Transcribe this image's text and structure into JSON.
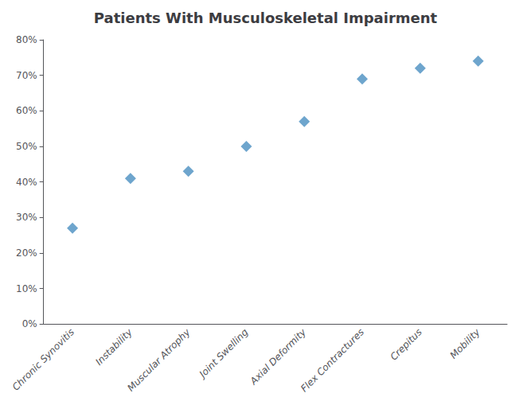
{
  "chart_data": {
    "type": "scatter",
    "title": "Patients With Musculoskeletal Impairment",
    "categories": [
      "Chronic Synovitis",
      "Instability",
      "Muscular Atrophy",
      "Joint Swelling",
      "Axial Deformity",
      "Flex Contractures",
      "Crepitus",
      "Mobility"
    ],
    "values": [
      0.27,
      0.41,
      0.43,
      0.5,
      0.57,
      0.69,
      0.72,
      0.74
    ],
    "color": "#4a8fc0",
    "marker": "diamond",
    "ylim": [
      0,
      0.8
    ],
    "yticks": [
      {
        "value": 0.0,
        "label": "0%"
      },
      {
        "value": 0.1,
        "label": "10%"
      },
      {
        "value": 0.2,
        "label": "20%"
      },
      {
        "value": 0.3,
        "label": "30%"
      },
      {
        "value": 0.4,
        "label": "40%"
      },
      {
        "value": 0.5,
        "label": "50%"
      },
      {
        "value": 0.6,
        "label": "60%"
      },
      {
        "value": 0.7,
        "label": "70%"
      },
      {
        "value": 0.8,
        "label": "80%"
      }
    ],
    "grid": false
  }
}
